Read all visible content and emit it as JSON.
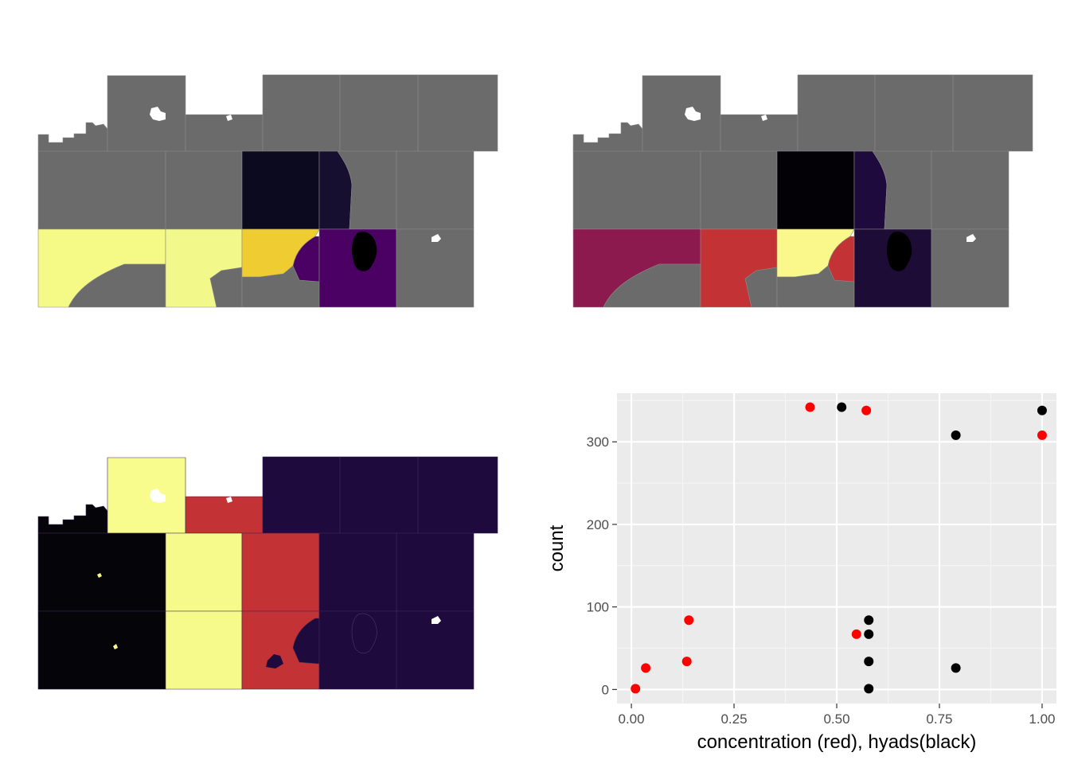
{
  "colors": {
    "na_gray": "#6B6B6B",
    "hole_white": "#FFFFFF",
    "panel_bg": "#EBEBEB",
    "grid_major": "#FFFFFF",
    "grid_minor": "#F5F5F5",
    "tick_text": "#4D4D4D",
    "red_points": "#FF0000",
    "black_points": "#000000"
  },
  "maps": [
    {
      "id": "map-top-left",
      "palette": "viridis",
      "fills": {
        "row3_col1": "#F5FA86",
        "row3_col2": "#F2F98A",
        "row3_col3": "#F0CC33",
        "row3_col4": "#4B0063",
        "row2_col3": "#0B0A1E",
        "row2_col4_strip": "#170F30",
        "lake": "#000000"
      }
    },
    {
      "id": "map-top-right",
      "palette": "inferno",
      "fills": {
        "row3_col1": "#8C1A4E",
        "row3_col2": "#C33234",
        "row3_col3": "#FAF88A",
        "row3_col3_patch": "#C33234",
        "row3_col4": "#1C0C36",
        "row2_col3": "#030106",
        "row2_col4_strip": "#1E0A3C",
        "lake": "#000000"
      }
    },
    {
      "id": "map-bottom-left",
      "palette": "inferno",
      "fills": {
        "col1": "#050409",
        "col2": "#F6FA8A",
        "col3": "#C33234",
        "east": "#1E0A3C",
        "top_col2": "#F8FC8C",
        "top_col3": "#C33234",
        "highlight": "#F6FA8A",
        "small_dark": "#1E0A3C"
      }
    }
  ],
  "chart_data": {
    "type": "scatter",
    "xlabel": "concentration (red), hyads(black)",
    "ylabel": "count",
    "xlim": [
      -0.035,
      1.035
    ],
    "ylim": [
      -17,
      359
    ],
    "x_ticks": [
      0,
      0.25,
      0.5,
      0.75,
      1
    ],
    "x_tick_labels": [
      "0.00",
      "0.25",
      "0.50",
      "0.75",
      "1.00"
    ],
    "y_ticks": [
      0,
      100,
      200,
      300
    ],
    "y_tick_labels": [
      "0",
      "100",
      "200",
      "300"
    ],
    "grid": true,
    "series": [
      {
        "color": "#FF0000",
        "points": [
          {
            "x": 0.01,
            "y": 1
          },
          {
            "x": 0.035,
            "y": 26
          },
          {
            "x": 0.135,
            "y": 34
          },
          {
            "x": 0.14,
            "y": 84
          },
          {
            "x": 0.435,
            "y": 342
          },
          {
            "x": 0.548,
            "y": 67
          },
          {
            "x": 0.572,
            "y": 338
          },
          {
            "x": 1.0,
            "y": 308
          }
        ]
      },
      {
        "color": "#000000",
        "points": [
          {
            "x": 0.512,
            "y": 342
          },
          {
            "x": 0.578,
            "y": 1
          },
          {
            "x": 0.578,
            "y": 34
          },
          {
            "x": 0.578,
            "y": 67
          },
          {
            "x": 0.578,
            "y": 84
          },
          {
            "x": 0.79,
            "y": 26
          },
          {
            "x": 0.79,
            "y": 308
          },
          {
            "x": 1.0,
            "y": 338
          }
        ]
      }
    ]
  }
}
